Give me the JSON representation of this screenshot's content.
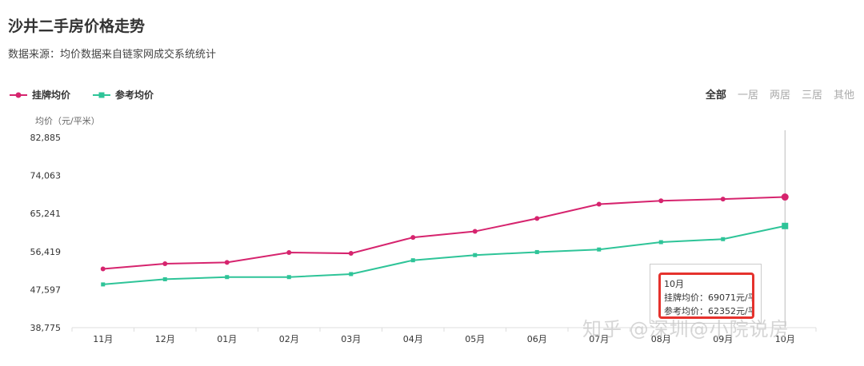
{
  "page": {
    "title": "沙井二手房价格走势",
    "subtitle": "数据来源：均价数据来自链家网成交系统统计",
    "filters": [
      {
        "label": "全部",
        "active": true
      },
      {
        "label": "一居",
        "active": false
      },
      {
        "label": "两居",
        "active": false
      },
      {
        "label": "三居",
        "active": false
      },
      {
        "label": "其他",
        "active": false
      }
    ],
    "watermark": "知乎 @深圳@小院说房"
  },
  "chart_data": {
    "type": "line",
    "ylabel": "均价（元/平米）",
    "categories": [
      "11月",
      "12月",
      "01月",
      "02月",
      "03月",
      "04月",
      "05月",
      "06月",
      "07月",
      "08月",
      "09月",
      "10月"
    ],
    "yticks": [
      "82,885",
      "74,063",
      "65,241",
      "56,419",
      "47,597",
      "38,775"
    ],
    "ylim": [
      38775,
      82885
    ],
    "grid": false,
    "legend": "top-left",
    "series": [
      {
        "name": "挂牌均价",
        "color": "#d6246e",
        "marker": "circle",
        "values": [
          52400,
          53600,
          53900,
          56200,
          56000,
          59700,
          61100,
          64100,
          67400,
          68200,
          68600,
          69071
        ]
      },
      {
        "name": "参考均价",
        "color": "#2ec498",
        "marker": "square",
        "values": [
          48800,
          50000,
          50500,
          50500,
          51200,
          54400,
          55600,
          56300,
          56900,
          58600,
          59300,
          62352
        ]
      }
    ],
    "tooltip": {
      "month": "10月",
      "line1": "挂牌均价：69071元/平",
      "line2": "参考均价：62352元/平"
    }
  }
}
